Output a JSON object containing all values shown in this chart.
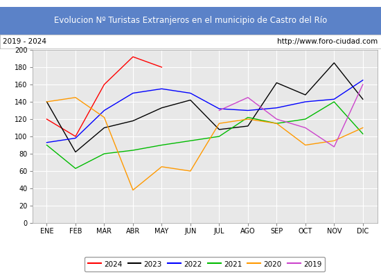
{
  "title": "Evolucion Nº Turistas Extranjeros en el municipio de Castro del Río",
  "subtitle_left": "2019 - 2024",
  "subtitle_right": "http://www.foro-ciudad.com",
  "months": [
    "ENE",
    "FEB",
    "MAR",
    "ABR",
    "MAY",
    "JUN",
    "JUL",
    "AGO",
    "SEP",
    "OCT",
    "NOV",
    "DIC"
  ],
  "ylim": [
    0,
    200
  ],
  "yticks": [
    0,
    20,
    40,
    60,
    80,
    100,
    120,
    140,
    160,
    180,
    200
  ],
  "series": {
    "2024": {
      "color": "#ff0000",
      "data": [
        120,
        100,
        160,
        192,
        180,
        null,
        null,
        null,
        null,
        null,
        null,
        null
      ]
    },
    "2023": {
      "color": "#000000",
      "data": [
        140,
        82,
        110,
        118,
        133,
        142,
        108,
        112,
        162,
        148,
        185,
        143
      ]
    },
    "2022": {
      "color": "#0000ff",
      "data": [
        93,
        98,
        130,
        150,
        155,
        150,
        132,
        130,
        133,
        140,
        143,
        165
      ]
    },
    "2021": {
      "color": "#00bb00",
      "data": [
        90,
        63,
        80,
        84,
        90,
        95,
        100,
        122,
        115,
        120,
        140,
        103
      ]
    },
    "2020": {
      "color": "#ff9900",
      "data": [
        140,
        145,
        122,
        38,
        65,
        60,
        115,
        120,
        115,
        90,
        95,
        110
      ]
    },
    "2019": {
      "color": "#cc44cc",
      "data": [
        null,
        null,
        null,
        null,
        null,
        null,
        130,
        145,
        120,
        110,
        88,
        160
      ]
    }
  },
  "title_bg_color": "#5b82c8",
  "title_text_color": "#ffffff",
  "plot_bg_color": "#e8e8e8",
  "grid_color": "#ffffff",
  "subtitle_box_color": "#ffffff",
  "subtitle_text_color": "#000000",
  "fig_width": 5.5,
  "fig_height": 4.0,
  "fig_dpi": 100
}
